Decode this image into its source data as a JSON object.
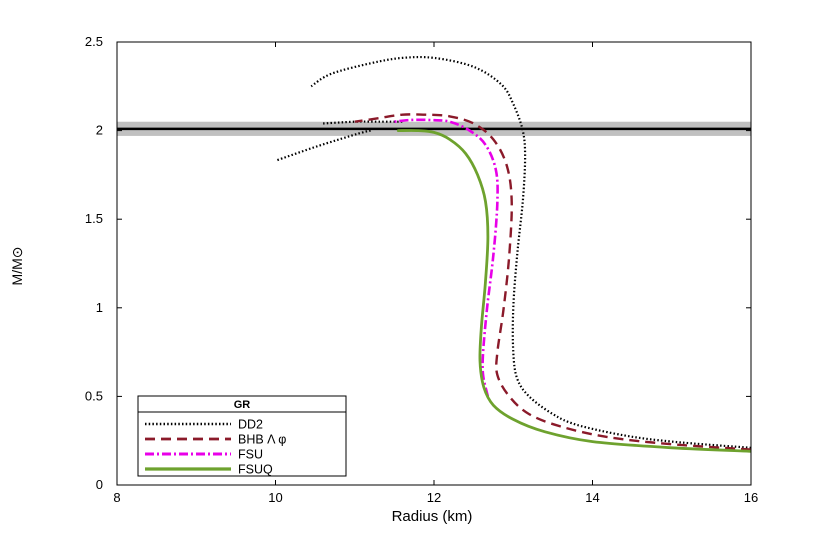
{
  "chart_data": {
    "type": "line",
    "title": "",
    "xlabel": "Radius (km)",
    "ylabel": "M/M⊙",
    "xlim": [
      8,
      16
    ],
    "ylim": [
      0,
      2.5
    ],
    "xticks": [
      8,
      10,
      12,
      14,
      16
    ],
    "yticks": [
      0,
      0.5,
      1,
      1.5,
      2,
      2.5
    ],
    "grid": false,
    "reference_band": {
      "y": 2.01,
      "low": 1.97,
      "high": 2.05,
      "color": "#000000",
      "band_color": "#c0c0c0"
    },
    "legend": {
      "title": "GR",
      "placement": "bottom-left"
    },
    "series": [
      {
        "name": "DD2",
        "color": "#000000",
        "style": "dotted",
        "x": [
          16.0,
          15.0,
          14.4,
          13.8,
          13.5,
          13.2,
          13.05,
          13.0,
          13.0,
          13.05,
          13.12,
          13.15,
          13.12,
          13.0,
          12.85,
          12.5,
          12.0,
          11.6,
          11.2,
          10.7,
          10.45
        ],
        "y": [
          0.21,
          0.245,
          0.28,
          0.34,
          0.4,
          0.5,
          0.6,
          0.75,
          1.0,
          1.3,
          1.6,
          1.85,
          2.0,
          2.15,
          2.26,
          2.36,
          2.41,
          2.41,
          2.38,
          2.32,
          2.25
        ]
      },
      {
        "name": "",
        "color": "#000000",
        "style": "dotted",
        "x": [
          11.2,
          11.1,
          10.8,
          10.45,
          10.0
        ],
        "y": [
          2.0,
          1.99,
          1.95,
          1.9,
          1.83
        ]
      },
      {
        "name": "",
        "color": "#000000",
        "style": "dotted",
        "x": [
          11.6,
          11.3,
          11.0,
          10.6
        ],
        "y": [
          2.05,
          2.05,
          2.05,
          2.04
        ]
      },
      {
        "name": "BHB Λ φ",
        "color": "#8b1a2a",
        "style": "dashed",
        "x": [
          16.0,
          15.0,
          14.2,
          13.6,
          13.2,
          12.95,
          12.8,
          12.8,
          12.88,
          12.95,
          12.98,
          12.92,
          12.75,
          12.5,
          12.2,
          11.9,
          11.6,
          11.3,
          11.0
        ],
        "y": [
          0.2,
          0.23,
          0.27,
          0.33,
          0.4,
          0.5,
          0.62,
          0.75,
          1.0,
          1.3,
          1.6,
          1.8,
          1.95,
          2.04,
          2.08,
          2.09,
          2.09,
          2.07,
          2.05
        ]
      },
      {
        "name": "FSU",
        "color": "#e800e8",
        "style": "dashdot",
        "x": [
          12.68,
          12.62,
          12.62,
          12.67,
          12.75,
          12.8,
          12.78,
          12.65,
          12.45,
          12.2,
          11.95,
          11.7,
          11.5
        ],
        "y": [
          0.5,
          0.62,
          0.75,
          1.0,
          1.3,
          1.6,
          1.78,
          1.92,
          2.0,
          2.05,
          2.06,
          2.06,
          2.05
        ]
      },
      {
        "name": "FSUQ",
        "color": "#6ea22e",
        "style": "solid",
        "x": [
          16.0,
          15.0,
          14.0,
          13.4,
          13.0,
          12.75,
          12.63,
          12.58,
          12.6,
          12.65,
          12.68,
          12.65,
          12.55,
          12.4,
          12.2,
          12.0,
          11.8,
          11.55
        ],
        "y": [
          0.19,
          0.21,
          0.245,
          0.3,
          0.37,
          0.45,
          0.55,
          0.7,
          0.9,
          1.15,
          1.4,
          1.6,
          1.75,
          1.87,
          1.95,
          1.99,
          2.0,
          2.0
        ]
      }
    ]
  }
}
